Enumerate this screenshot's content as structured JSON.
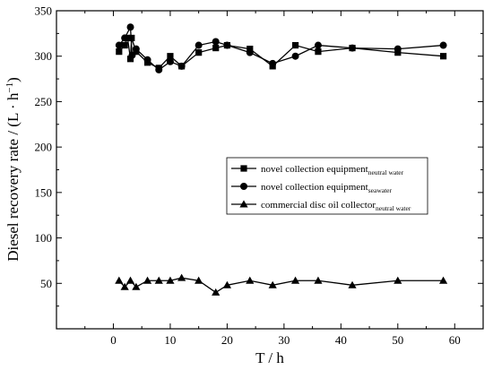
{
  "chart_data": {
    "type": "line",
    "title": "",
    "xlabel": "T / h",
    "ylabel_main": "Diesel recovery rate / (L · h",
    "ylabel_sup": "−1",
    "ylabel_end": ")",
    "xlim": [
      -10,
      65
    ],
    "ylim": [
      0,
      350
    ],
    "x_ticks": [
      0,
      10,
      20,
      30,
      40,
      50,
      60
    ],
    "y_ticks": [
      50,
      100,
      150,
      200,
      250,
      300,
      350
    ],
    "grid": false,
    "legend_position": "center-right",
    "series": [
      {
        "name": "novel collection equipment",
        "name_sub": "neutral water",
        "marker": "square",
        "points": [
          [
            1,
            305
          ],
          [
            2,
            312
          ],
          [
            2.5,
            320
          ],
          [
            3,
            297
          ],
          [
            3.2,
            320
          ],
          [
            4,
            305
          ],
          [
            6,
            293
          ],
          [
            8,
            287
          ],
          [
            10,
            300
          ],
          [
            12,
            289
          ],
          [
            15,
            304
          ],
          [
            18,
            309
          ],
          [
            20,
            312
          ],
          [
            24,
            308
          ],
          [
            28,
            289
          ],
          [
            32,
            312
          ],
          [
            36,
            305
          ],
          [
            42,
            309
          ],
          [
            50,
            304
          ],
          [
            58,
            300
          ]
        ]
      },
      {
        "name": "novel collection equipment",
        "name_sub": "seawater",
        "marker": "circle",
        "points": [
          [
            1,
            312
          ],
          [
            2,
            320
          ],
          [
            3,
            332
          ],
          [
            3.3,
            301
          ],
          [
            4,
            308
          ],
          [
            6,
            296
          ],
          [
            8,
            285
          ],
          [
            10,
            294
          ],
          [
            12,
            289
          ],
          [
            15,
            312
          ],
          [
            18,
            316
          ],
          [
            20,
            312
          ],
          [
            24,
            304
          ],
          [
            28,
            292
          ],
          [
            32,
            300
          ],
          [
            36,
            312
          ],
          [
            42,
            309
          ],
          [
            50,
            308
          ],
          [
            58,
            312
          ]
        ]
      },
      {
        "name": "commercial disc oil collector",
        "name_sub": "neutral water",
        "marker": "triangle",
        "points": [
          [
            1,
            53
          ],
          [
            2,
            46
          ],
          [
            3,
            53
          ],
          [
            4,
            46
          ],
          [
            6,
            53
          ],
          [
            8,
            53
          ],
          [
            10,
            53
          ],
          [
            12,
            56
          ],
          [
            15,
            53
          ],
          [
            18,
            40
          ],
          [
            20,
            48
          ],
          [
            24,
            53
          ],
          [
            28,
            48
          ],
          [
            32,
            53
          ],
          [
            36,
            53
          ],
          [
            42,
            48
          ],
          [
            50,
            53
          ],
          [
            58,
            53
          ]
        ]
      }
    ]
  }
}
